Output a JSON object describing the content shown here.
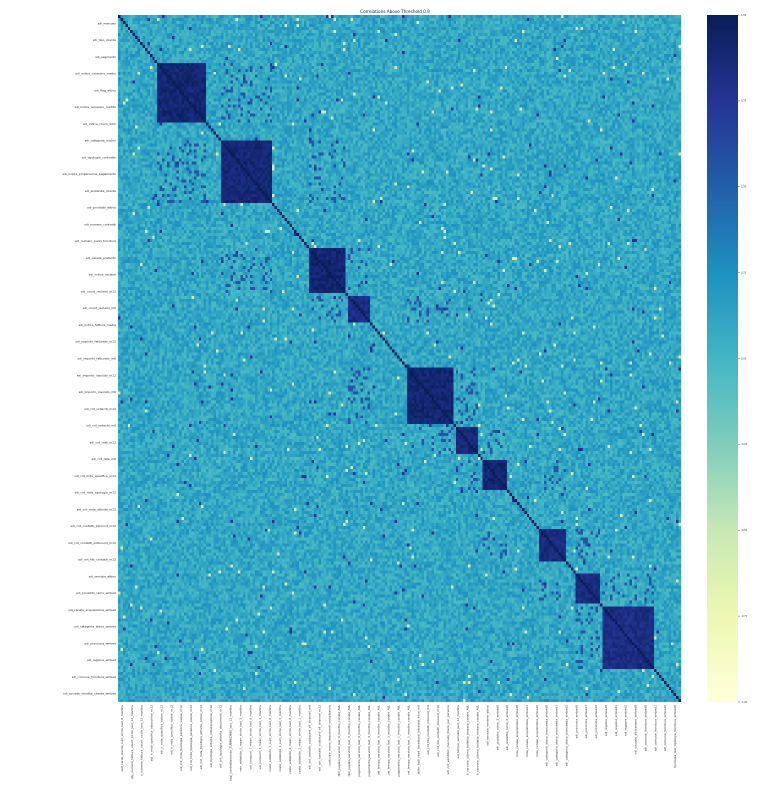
{
  "chart_data": {
    "type": "heatmap",
    "title": "Correlations Above Threshold 0.9",
    "xlabel": "",
    "ylabel": "",
    "colormap": "YlGnBu",
    "value_range": [
      -1,
      1
    ],
    "colorbar": {
      "position": "right",
      "ticks": [
        "1.00",
        "0.75",
        "0.50",
        "0.25",
        "0.00",
        "-0.25",
        "-0.50",
        "-0.75",
        "-1.00"
      ]
    },
    "color_scale": [
      "#ffffd9",
      "#edf8b1",
      "#c7e9b4",
      "#7fcdbb",
      "#41b6c4",
      "#1d91c0",
      "#225ea8",
      "#253494",
      "#081d58"
    ],
    "matrix_size": 230,
    "base_correlation": 0.1,
    "high_correlation_blocks": [
      {
        "start": 16,
        "end": 35,
        "value": 0.97
      },
      {
        "start": 42,
        "end": 62,
        "value": 0.96
      },
      {
        "start": 78,
        "end": 92,
        "value": 0.98
      },
      {
        "start": 94,
        "end": 102,
        "value": 0.9
      },
      {
        "start": 118,
        "end": 136,
        "value": 0.97
      },
      {
        "start": 138,
        "end": 146,
        "value": 0.95
      },
      {
        "start": 149,
        "end": 158,
        "value": 0.97
      },
      {
        "start": 172,
        "end": 182,
        "value": 0.92
      },
      {
        "start": 187,
        "end": 196,
        "value": 0.92
      },
      {
        "start": 198,
        "end": 218,
        "value": 0.9
      }
    ],
    "x_tick_labels": [
      "sell_cards_clients_sum_circle_last_6_months",
      "qty_numero_fattura_count_circle_last_12_months",
      "n_numero_fattura_count_circle_last_12_months",
      "sdi_n_mda_specifica_attacchino_m12",
      "sdi_n_mda_specifica_colors_m12",
      "sdi_n_mda_specifica_valore_m12",
      "sdi_cnt_mda_tipologia_persona_valore_m12",
      "sdi_cnt_mda_tipologia_persona_colore_m12",
      "sdi_cnt_mda_tipologia_attivita_colore_m12",
      "sdi_tipologia_attivita_collaborazione_m12",
      "sdi_cnt_tipologia_attivita_documenti_m12",
      "tagl_contrattamento_SUBBILDING_last_12_months",
      "min_addebito_1_mean_circle_last_3_months",
      "val_consumi_1_mean_circle_last_6_months",
      "val_consumi_1_mean_circle_last_1_months",
      "costo_addebito_1_sum_circle_last_6_months",
      "costo_addebito_1_sum_circle_last_3_months",
      "costo_addebito_2_mean_circle_last_6_months",
      "costo_addebito_2_mean_circle_last_1_months",
      "sdi_cnt_contatti_outbound_all_channel_m6",
      "sdi_cnt_contatti_outbound_all_channel_m12",
      "costruire_meno_documenti_compleanno",
      "qtd_pagato_servizio_last_6_months_canale_ALL",
      "qtd_pagato_servizio_last_3_months_canale_ALL",
      "pagamento_servizio_last_6_months_canale_ALL",
      "pagamento_servizio_last_3_months_canale_ALL",
      "val_tempo_servizio_last_6_months_canale_ALL",
      "val_tempo_servizio_last_3_months_canale_ALL",
      "pagamento_servizio_last_1_months_canale_ALL",
      "val_tempo_servizio_last_1_months_canale_ALL",
      "ablkr_bolli_read_accettanti_Intrastat_Intra_m6",
      "sdi_cnt_fds_contatti_inbound_m6",
      "sdi_cnt_fds_contatti_inbound_m12",
      "sdi_cnt_venditori_mercato_libero_per_persone",
      "val_tempo_servizio_last_12_months",
      "h_servizio_ultima_bolletta_emessa_canale_ALL",
      "h_servizio_ultima_bolletta_emessa_canale_ALL",
      "sdi_servizio_rendere_attivo",
      "sdi_prodotto_ramo_3_embed0",
      "sdi_prodotto_ramo_2_embed0",
      "mda_canale_acquisizione_embed0",
      "mda_canale_acquisizione_embed1",
      "mda_canale_acquisizione_embed2",
      "sdi_categoria_ateco_enervaeda_embed0",
      "sdi_categoria_ateco_enervaeda_embed1",
      "sdi_categoria_ateco_enervaeda_embed2",
      "sdi_provincia_embed0",
      "sdi_provincia_embed1",
      "sdi_provincia_embed2",
      "sdi_regione_embed0",
      "sdi_regione_embed1",
      "sdi_regione_embed2",
      "cdl_causale_attivazione_embed0",
      "sdi_comune_fornitura_embed0",
      "sdi_comune_fornitura_embed1",
      "sdi_comune_fornitura_embed2",
      "tipologia_last_tipologia_fornitura_embed0"
    ],
    "y_tick_labels": [
      "sdi_mercato",
      "sdi_tipo_cliente",
      "sdi_segmento",
      "sdi_indice_consumo_medio",
      "sdi_flag_attivo",
      "sdi_indice_recupero_credito",
      "sdi_indice_churn_12m",
      "sdi_categoria_rischio",
      "sdi_tipologia_contratto",
      "sdi_indice_propensione_pagamento",
      "sdi_anzianita_cliente",
      "sdi_prodotto_attivo",
      "sdi_numero_contratti",
      "sdi_numero_punti_fornitura",
      "sdi_canale_preferito",
      "sdi_indice_reclami",
      "sdi_count_reclami_m12",
      "sdi_count_reclami_m6",
      "sdi_indice_fattura_media",
      "sdi_importo_fatturato_m12",
      "sdi_importo_fatturato_m6",
      "sdi_importo_insoluto_m12",
      "sdi_importo_insoluto_m6",
      "sdi_cnt_solleciti_m12",
      "sdi_cnt_solleciti_m6",
      "sdi_cnt_rate_m12",
      "sdi_cnt_rate_m6",
      "sdi_cnt_mda_specifica_m12",
      "sdi_cnt_mda_tipologia_m12",
      "sdi_cnt_mda_attivita_m12",
      "sdi_cnt_contatti_inbound_m12",
      "sdi_cnt_contatti_outbound_m12",
      "sdi_cnt_fds_contatti_m12",
      "sdi_servizio_attivo",
      "sdi_prodotto_ramo_embed",
      "sdi_canale_acquisizione_embed",
      "sdi_categoria_ateco_embed",
      "sdi_provincia_embed",
      "sdi_regione_embed",
      "sdi_comune_fornitura_embed",
      "sdi_societa_vendita_cliente_embed"
    ]
  }
}
